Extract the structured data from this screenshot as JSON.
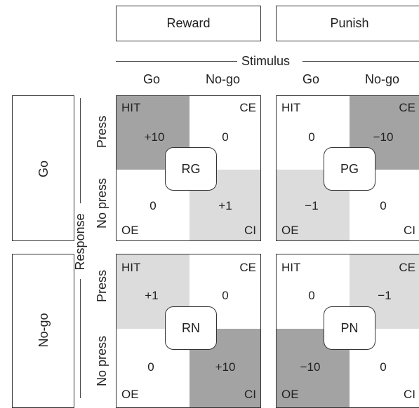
{
  "columns": {
    "reward": "Reward",
    "punish": "Punish",
    "stimulus": "Stimulus",
    "reward_go": "Go",
    "reward_nogo": "No-go",
    "punish_go": "Go",
    "punish_nogo": "No-go"
  },
  "rows": {
    "go": "Go",
    "nogo": "No-go",
    "response": "Response",
    "go_press": "Press",
    "go_nopress": "No press",
    "nogo_press": "Press",
    "nogo_nopress": "No press"
  },
  "colors": {
    "dark": "#a3a3a3",
    "light": "#dcdcdc",
    "white": "#ffffff"
  },
  "panels": {
    "rg": {
      "label": "RG",
      "hit": "HIT",
      "ce": "CE",
      "oe": "OE",
      "ci": "CI",
      "hit_value": "+10",
      "ce_value": "0",
      "oe_value": "0",
      "ci_value": "+1"
    },
    "pg": {
      "label": "PG",
      "hit": "HIT",
      "ce": "CE",
      "oe": "OE",
      "ci": "CI",
      "hit_value": "0",
      "ce_value": "−10",
      "oe_value": "−1",
      "ci_value": "0"
    },
    "rn": {
      "label": "RN",
      "hit": "HIT",
      "ce": "CE",
      "oe": "OE",
      "ci": "CI",
      "hit_value": "+1",
      "ce_value": "0",
      "oe_value": "0",
      "ci_value": "+10"
    },
    "pn": {
      "label": "PN",
      "hit": "HIT",
      "ce": "CE",
      "oe": "OE",
      "ci": "CI",
      "hit_value": "0",
      "ce_value": "−1",
      "oe_value": "−10",
      "ci_value": "0"
    }
  }
}
